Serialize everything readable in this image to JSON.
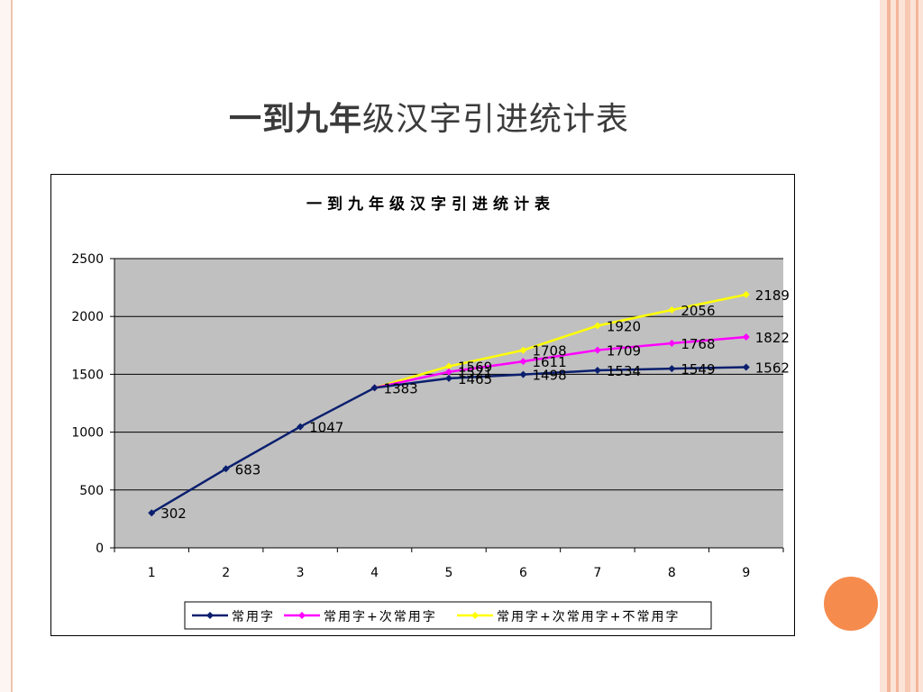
{
  "slide": {
    "title_bold": "一到九年",
    "title_rest": "级汉字引进统计表"
  },
  "colors": {
    "series_1": "#0a1f6e",
    "series_2": "#ff00ff",
    "series_3": "#ffff00",
    "plot_bg": "#c0c0c0",
    "accent_circle": "#f58c4e"
  },
  "chart_data": {
    "type": "line",
    "title": "一到九年级汉字引进统计表",
    "xlabel": "",
    "ylabel": "",
    "ylim": [
      0,
      2500
    ],
    "yticks": [
      0,
      500,
      1000,
      1500,
      2000,
      2500
    ],
    "categories": [
      "1",
      "2",
      "3",
      "4",
      "5",
      "6",
      "7",
      "8",
      "9"
    ],
    "grid": true,
    "legend_position": "bottom",
    "series": [
      {
        "name": "常用字",
        "x": [
          1,
          2,
          3,
          4,
          5,
          6,
          7,
          8,
          9
        ],
        "values": [
          302,
          683,
          1047,
          1383,
          1465,
          1498,
          1534,
          1549,
          1562
        ]
      },
      {
        "name": "常用字+次常用字",
        "x": [
          4,
          5,
          6,
          7,
          8,
          9
        ],
        "values": [
          1383,
          1521,
          1611,
          1709,
          1768,
          1822
        ]
      },
      {
        "name": "常用字+次常用字+不常用字",
        "x": [
          4,
          5,
          6,
          7,
          8,
          9
        ],
        "values": [
          1383,
          1569,
          1708,
          1920,
          2056,
          2189
        ]
      }
    ]
  }
}
